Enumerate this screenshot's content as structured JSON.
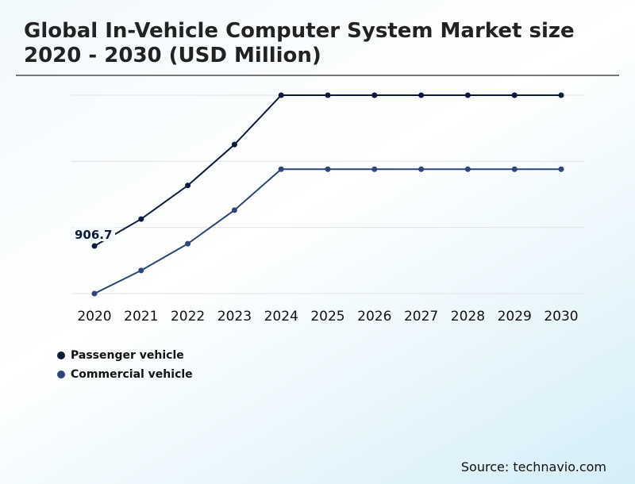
{
  "title": "Global In-Vehicle Computer System Market size 2020 - 2030 (USD Million)",
  "source": "Source: technavio.com",
  "chart_data": {
    "type": "line",
    "title": "Global In-Vehicle Computer System Market size 2020 - 2030 (USD Million)",
    "categories": [
      "2020",
      "2021",
      "2022",
      "2023",
      "2024",
      "2025",
      "2026",
      "2027",
      "2028",
      "2029",
      "2030"
    ],
    "series": [
      {
        "name": "Passenger vehicle",
        "color": "#0d1b3e",
        "values": [
          906.7,
          1420,
          2060,
          2840,
          3780,
          3780,
          3780,
          3780,
          3780,
          3780,
          3780
        ]
      },
      {
        "name": "Commercial vehicle",
        "color": "#2e4577",
        "values": [
          0,
          440,
          950,
          1590,
          2370,
          2370,
          2370,
          2370,
          2370,
          2370,
          2370
        ]
      }
    ],
    "data_labels": [
      {
        "series": "Passenger vehicle",
        "category": "2020",
        "text": "906.7"
      }
    ],
    "ylim": [
      0,
      3780
    ],
    "grid": true,
    "legend": "bottom-left"
  }
}
